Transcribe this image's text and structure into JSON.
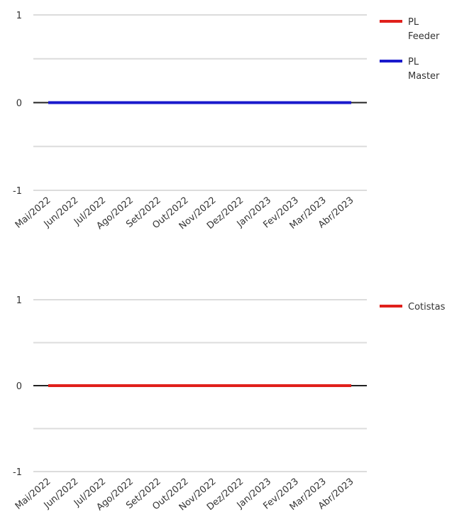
{
  "chart_data": [
    {
      "type": "line",
      "categories": [
        "Mai/2022",
        "Jun/2022",
        "Jul/2022",
        "Ago/2022",
        "Set/2022",
        "Out/2022",
        "Nov/2022",
        "Dez/2022",
        "Jan/2023",
        "Fev/2023",
        "Mar/2023",
        "Abr/2023"
      ],
      "ylim": [
        -1,
        1
      ],
      "yticks": [
        "-1",
        "0",
        "1"
      ],
      "grid": true,
      "legend_position": "right",
      "series": [
        {
          "name": "PL Feeder",
          "legend_lines": [
            "PL",
            "Feeder"
          ],
          "color": "#e0201b",
          "values": [
            0,
            0,
            0,
            0,
            0,
            0,
            0,
            0,
            0,
            0,
            0,
            0
          ]
        },
        {
          "name": "PL Master",
          "legend_lines": [
            "PL",
            "Master"
          ],
          "color": "#1a1acc",
          "values": [
            0,
            0,
            0,
            0,
            0,
            0,
            0,
            0,
            0,
            0,
            0,
            0
          ]
        }
      ]
    },
    {
      "type": "line",
      "categories": [
        "Mai/2022",
        "Jun/2022",
        "Jul/2022",
        "Ago/2022",
        "Set/2022",
        "Out/2022",
        "Nov/2022",
        "Dez/2022",
        "Jan/2023",
        "Fev/2023",
        "Mar/2023",
        "Abr/2023"
      ],
      "ylim": [
        -1,
        1
      ],
      "yticks": [
        "-1",
        "0",
        "1"
      ],
      "grid": true,
      "legend_position": "right",
      "series": [
        {
          "name": "Cotistas",
          "legend_lines": [
            "Cotistas"
          ],
          "color": "#e0201b",
          "values": [
            0,
            0,
            0,
            0,
            0,
            0,
            0,
            0,
            0,
            0,
            0,
            0
          ]
        }
      ]
    }
  ]
}
